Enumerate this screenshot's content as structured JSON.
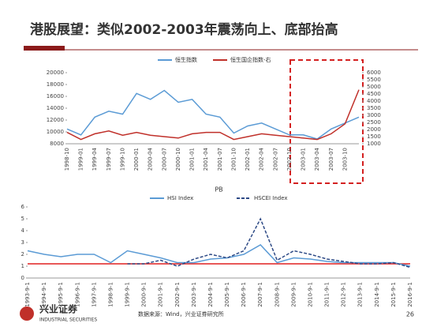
{
  "title": "港股展望：类似2002-2003年震荡向上、底部抬高",
  "chart_data": [
    {
      "type": "line",
      "categories": [
        "1998-10",
        "1999-01",
        "1999-04",
        "1999-07",
        "1999-10",
        "2000-01",
        "2000-04",
        "2000-07",
        "2000-10",
        "2001-01",
        "2001-04",
        "2001-07",
        "2001-10",
        "2002-01",
        "2002-04",
        "2002-07",
        "2002-10",
        "2003-01",
        "2003-04",
        "2003-07",
        "2003-10",
        null
      ],
      "series": [
        {
          "name": "恒生指数",
          "color": "#5b9bd5",
          "axis": "y",
          "values": [
            10500,
            9500,
            12500,
            13500,
            13000,
            16500,
            15500,
            17000,
            15000,
            15500,
            13000,
            12500,
            9800,
            11000,
            11500,
            10500,
            9500,
            9500,
            8800,
            10500,
            11500,
            12500
          ]
        },
        {
          "name": "恒生国企指数-右",
          "color": "#c0302a",
          "axis": "y2",
          "values": [
            1800,
            1300,
            1700,
            1900,
            1600,
            1800,
            1600,
            1500,
            1400,
            1700,
            1800,
            1800,
            1300,
            1500,
            1700,
            1600,
            1500,
            1400,
            1300,
            1700,
            2400,
            4800
          ]
        }
      ],
      "ylim": [
        8000,
        20000
      ],
      "yticks": [
        8000,
        10000,
        12000,
        14000,
        16000,
        18000,
        20000
      ],
      "y2lim": [
        1000,
        6000
      ],
      "y2ticks": [
        1000,
        1500,
        2000,
        2500,
        3000,
        3500,
        4000,
        4500,
        5000,
        5500,
        6000
      ],
      "grid": false
    },
    {
      "type": "line",
      "title": "PB",
      "categories": [
        "1993-9-1",
        "1994-9-1",
        "1995-9-1",
        "1996-9-1",
        "1997-9-1",
        "1998-9-1",
        "1999-9-1",
        "2000-9-1",
        "2001-9-1",
        "2002-9-1",
        "2003-9-1",
        "2004-9-1",
        "2005-9-1",
        "2006-9-1",
        "2007-9-1",
        "2008-9-1",
        "2009-9-1",
        "2010-9-1",
        "2011-9-1",
        "2012-9-1",
        "2013-9-1",
        "2014-9-1",
        "2015-9-1",
        "2016-9-1"
      ],
      "series": [
        {
          "name": "HSI Index",
          "color": "#5b9bd5",
          "values": [
            2.3,
            2.0,
            1.8,
            2.0,
            2.0,
            1.3,
            2.3,
            2.0,
            1.7,
            1.3,
            1.3,
            1.6,
            1.7,
            2.0,
            2.8,
            1.3,
            1.7,
            1.6,
            1.4,
            1.3,
            1.3,
            1.3,
            1.3,
            1.0
          ]
        },
        {
          "name": "HSCEI Index",
          "color": "#2e4a86",
          "dash": true,
          "values": [
            null,
            null,
            null,
            null,
            null,
            null,
            1.2,
            1.2,
            1.5,
            1.0,
            1.6,
            2.0,
            1.7,
            2.3,
            5.0,
            1.5,
            2.3,
            2.0,
            1.6,
            1.4,
            1.2,
            1.2,
            1.3,
            0.9
          ]
        }
      ],
      "reference_line": {
        "value": 1.2,
        "color": "#e02020"
      },
      "ylim": [
        0,
        6
      ],
      "yticks": [
        0,
        1,
        2,
        3,
        4,
        5,
        6
      ],
      "grid": false
    }
  ],
  "footer": {
    "logo_cn": "兴业证券",
    "logo_en": "INDUSTRIAL SECURITIES",
    "source": "数据来源：Wind，兴业证券研究所",
    "page": "26"
  }
}
